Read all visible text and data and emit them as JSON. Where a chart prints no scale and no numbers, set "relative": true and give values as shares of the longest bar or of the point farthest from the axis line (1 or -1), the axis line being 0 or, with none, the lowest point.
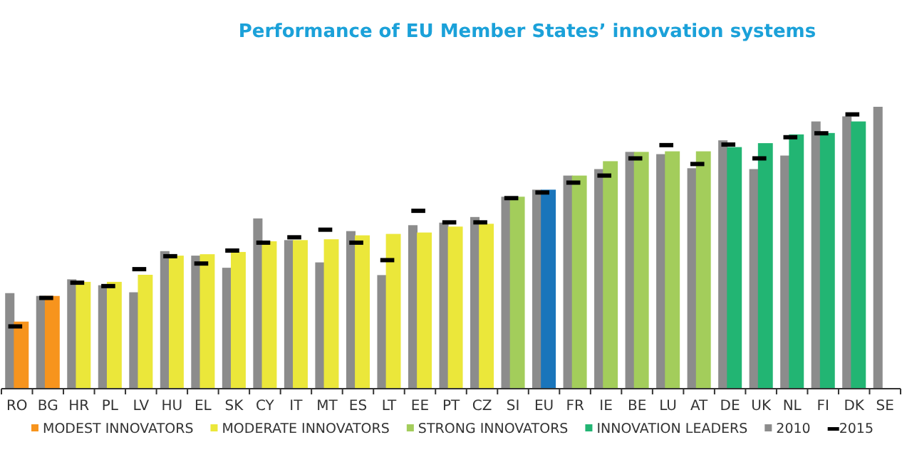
{
  "chart_data": {
    "type": "bar",
    "title": "Performance of EU Member States’ innovation systems",
    "relative": true,
    "legend": "bottom",
    "categories": [
      "RO",
      "BG",
      "HR",
      "PL",
      "LV",
      "HU",
      "EL",
      "SK",
      "CY",
      "IT",
      "MT",
      "ES",
      "LT",
      "EE",
      "PT",
      "CZ",
      "SI",
      "EU",
      "FR",
      "IE",
      "BE",
      "LU",
      "AT",
      "DE",
      "UK",
      "NL",
      "FI",
      "DK",
      "SE"
    ],
    "series": [
      {
        "name": "MODEST INNOVATORS",
        "color": "#f7941d",
        "values": [
          0.238,
          0.329,
          null,
          null,
          null,
          null,
          null,
          null,
          null,
          null,
          null,
          null,
          null,
          null,
          null,
          null,
          null,
          null,
          null,
          null,
          null,
          null,
          null,
          null,
          null,
          null,
          null,
          null,
          null
        ]
      },
      {
        "name": "MODERATE INNOVATORS",
        "color": "#ebe73a",
        "values": [
          null,
          null,
          0.379,
          0.379,
          0.404,
          0.472,
          0.477,
          0.485,
          0.523,
          0.527,
          0.53,
          0.544,
          0.549,
          0.554,
          0.575,
          0.585,
          null,
          null,
          null,
          null,
          null,
          null,
          null,
          null,
          null,
          null,
          null,
          null,
          null
        ]
      },
      {
        "name": "STRONG INNOVATORS",
        "color": "#a3cd5b",
        "values": [
          null,
          null,
          null,
          null,
          null,
          null,
          null,
          null,
          null,
          null,
          null,
          null,
          null,
          null,
          null,
          null,
          0.681,
          null,
          0.756,
          0.807,
          0.84,
          0.842,
          0.842,
          null,
          null,
          null,
          null,
          null,
          null
        ]
      },
      {
        "name": "INNOVATION LEADERS",
        "color": "#22b573",
        "values": [
          null,
          null,
          null,
          null,
          null,
          null,
          null,
          null,
          null,
          null,
          null,
          null,
          null,
          null,
          null,
          null,
          null,
          null,
          null,
          null,
          null,
          null,
          null,
          0.857,
          0.871,
          0.902,
          0.907,
          0.948,
          null
        ]
      },
      {
        "color": "#1a75bb",
        "values": [
          null,
          null,
          null,
          null,
          null,
          null,
          null,
          null,
          null,
          null,
          null,
          null,
          null,
          null,
          null,
          null,
          null,
          0.706,
          null,
          null,
          null,
          null,
          null,
          null,
          null,
          null,
          null,
          null,
          null
        ]
      },
      {
        "name": "2010",
        "color": "#8c8c8c",
        "values": [
          0.339,
          0.329,
          0.388,
          0.367,
          0.342,
          0.488,
          0.472,
          0.429,
          0.604,
          0.527,
          0.448,
          0.559,
          0.403,
          0.58,
          0.589,
          0.609,
          0.681,
          0.706,
          0.756,
          0.779,
          0.84,
          0.832,
          0.782,
          0.881,
          0.779,
          0.827,
          0.948,
          0.966,
          1
        ]
      },
      {
        "name": "2015",
        "type": "scatter",
        "color": "#000000",
        "values": [
          0.221,
          0.322,
          0.376,
          0.364,
          0.424,
          0.47,
          0.444,
          0.49,
          0.518,
          0.537,
          0.564,
          0.518,
          0.456,
          0.631,
          0.59,
          0.59,
          0.676,
          0.696,
          0.731,
          0.756,
          0.817,
          0.864,
          0.797,
          0.866,
          0.817,
          0.892,
          0.906,
          0.973,
          null
        ]
      }
    ]
  }
}
